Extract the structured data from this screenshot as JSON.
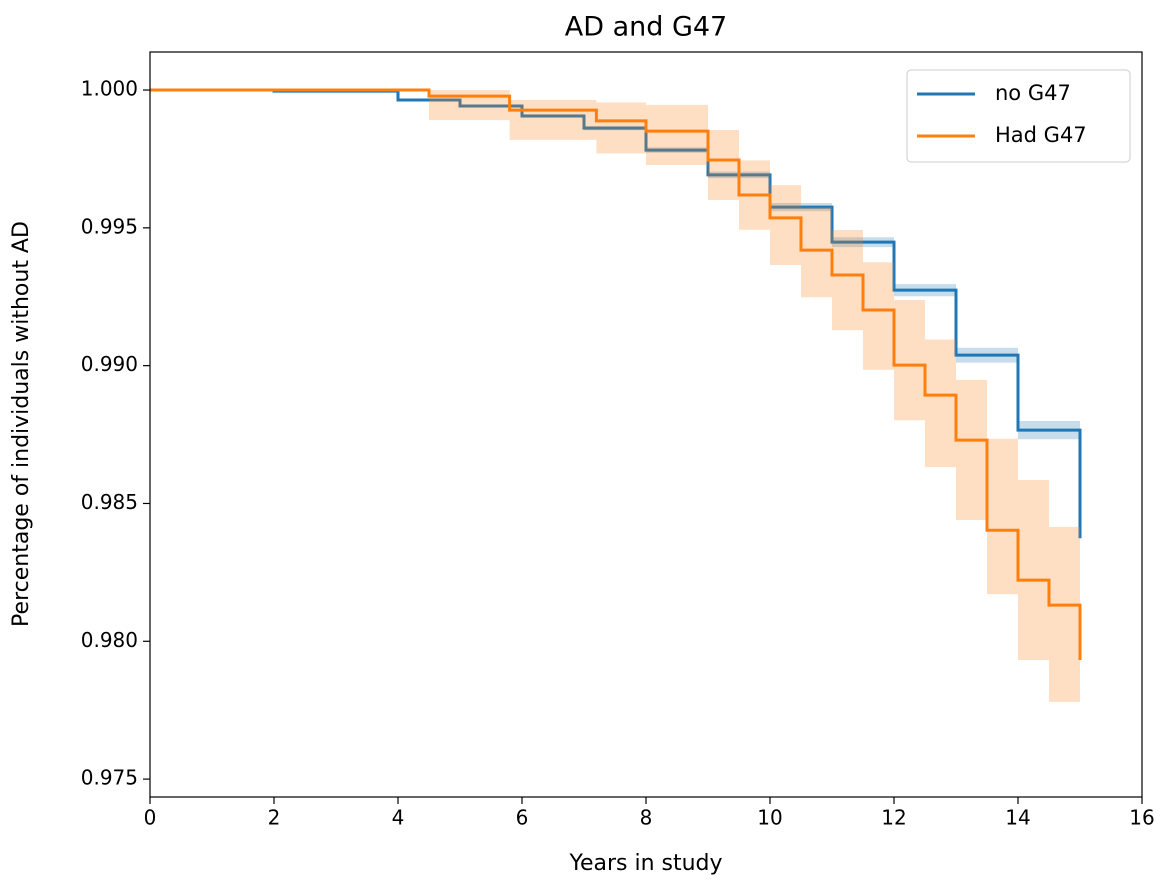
{
  "chart_data": {
    "type": "step",
    "title": "AD and G47",
    "xlabel": "Years in study",
    "ylabel": "Percentage of individuals without AD",
    "xlim": [
      0,
      16
    ],
    "ylim": [
      0.97435,
      1.00138
    ],
    "xticks": [
      0,
      2,
      4,
      6,
      8,
      10,
      12,
      14,
      16
    ],
    "yticks": [
      {
        "value": 0.975,
        "label": "0.975"
      },
      {
        "value": 0.98,
        "label": "0.980"
      },
      {
        "value": 0.985,
        "label": "0.985"
      },
      {
        "value": 0.99,
        "label": "0.990"
      },
      {
        "value": 0.995,
        "label": "0.995"
      },
      {
        "value": 1.0,
        "label": "1.000"
      }
    ],
    "legend": "upper right",
    "series": [
      {
        "name": "no G47",
        "color": "#1f77b4",
        "x": [
          0,
          2,
          4,
          5,
          6,
          7,
          8,
          9,
          10,
          11,
          12,
          13,
          14,
          15,
          15
        ],
        "values": [
          1.0,
          0.99996,
          0.99964,
          0.99942,
          0.99906,
          0.99862,
          0.99782,
          0.99692,
          0.99575,
          0.99448,
          0.99274,
          0.99038,
          0.98766,
          0.98523,
          0.98374
        ],
        "upper": [
          1.0,
          0.99996,
          0.99967,
          0.99947,
          0.99912,
          0.9987,
          0.99792,
          0.99704,
          0.9959,
          0.99466,
          0.99296,
          0.99065,
          0.98799,
          0.98563,
          0.98414
        ],
        "lower": [
          1.0,
          0.99996,
          0.99961,
          0.99937,
          0.999,
          0.99854,
          0.99772,
          0.9968,
          0.9956,
          0.9943,
          0.99252,
          0.99011,
          0.98733,
          0.98483,
          0.98334
        ]
      },
      {
        "name": "Had G47",
        "color": "#ff7f0e",
        "x": [
          0,
          4.5,
          5.8,
          7.2,
          8,
          9,
          9.5,
          10,
          10.5,
          11,
          11.5,
          12,
          12.5,
          13,
          13.5,
          14,
          14.5,
          15,
          15
        ],
        "values": [
          1.0,
          0.99978,
          0.99927,
          0.99888,
          0.99851,
          0.99746,
          0.99619,
          0.99536,
          0.99419,
          0.99329,
          0.99202,
          0.99002,
          0.98893,
          0.9873,
          0.98403,
          0.98222,
          0.98131,
          0.98095,
          0.97932
        ],
        "upper": [
          1.0,
          1.0,
          0.99964,
          0.99955,
          0.99946,
          0.99855,
          0.99745,
          0.99655,
          0.99575,
          0.99492,
          0.99375,
          0.99238,
          0.99095,
          0.98948,
          0.98735,
          0.98585,
          0.98415,
          0.98385,
          0.98385
        ],
        "lower": [
          1.0,
          0.99891,
          0.99819,
          0.9977,
          0.99728,
          0.99601,
          0.99493,
          0.99365,
          0.99248,
          0.99129,
          0.98985,
          0.98802,
          0.98632,
          0.9844,
          0.98171,
          0.97932,
          0.9778,
          0.9775,
          0.97562
        ]
      }
    ]
  }
}
